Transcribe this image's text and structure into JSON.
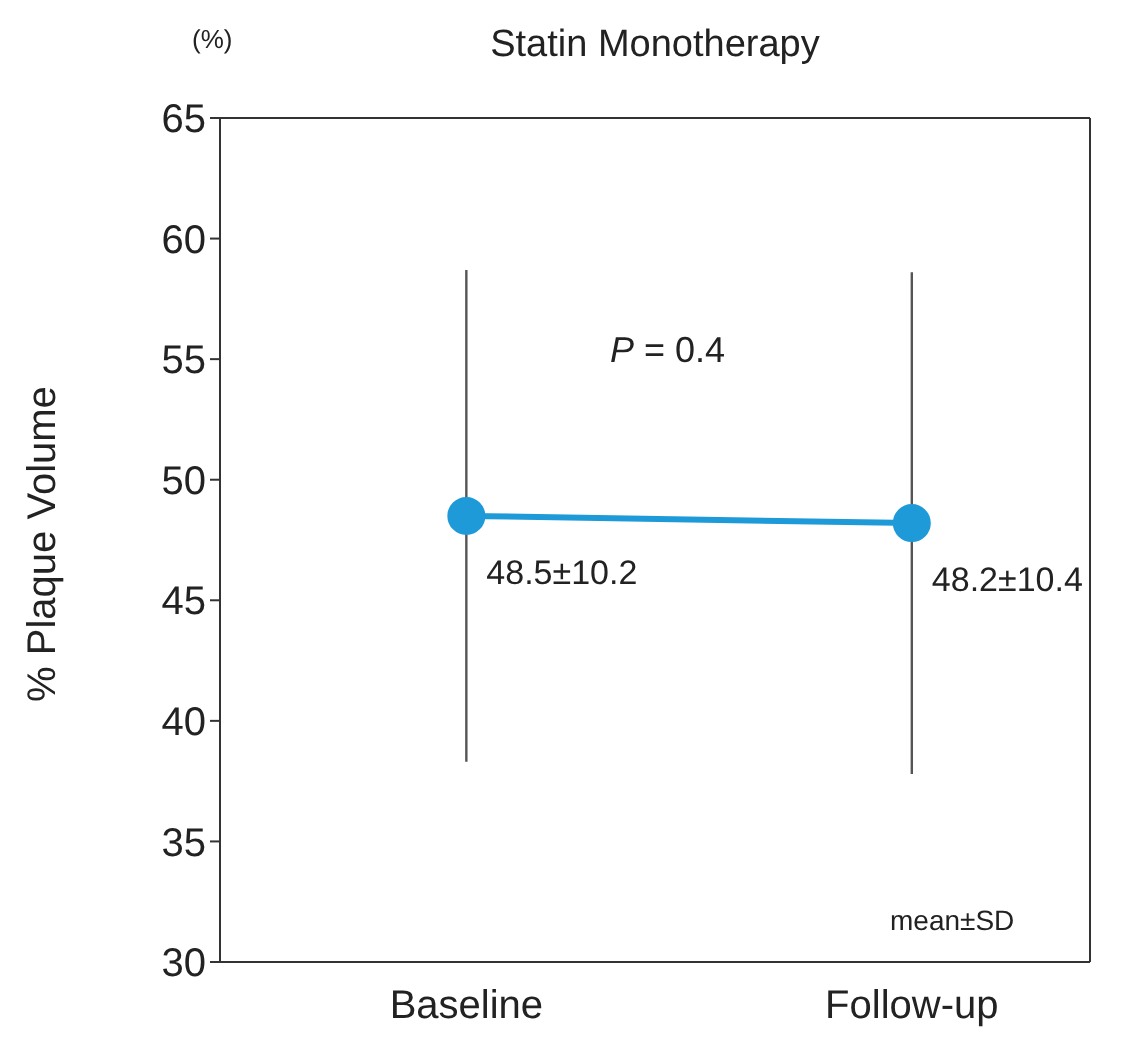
{
  "chart_data": {
    "type": "line",
    "title": "Statin Monotherapy",
    "ylabel": "% Plaque Volume",
    "categories": [
      "Baseline",
      "Follow-up"
    ],
    "series": [
      {
        "color": "#1f9ad8",
        "values": [
          48.5,
          48.2
        ],
        "errors": [
          10.2,
          10.4
        ],
        "value_labels": [
          "48.5±10.2",
          "48.2±10.4"
        ]
      }
    ],
    "ylim": [
      30,
      65
    ],
    "yticks": [
      30,
      35,
      40,
      45,
      50,
      55,
      60,
      65
    ],
    "grid": false,
    "legend": false,
    "marker": "circle",
    "line_style": "solid",
    "annotations": [
      "(%)",
      "P = 0.4",
      "mean±SD"
    ]
  }
}
